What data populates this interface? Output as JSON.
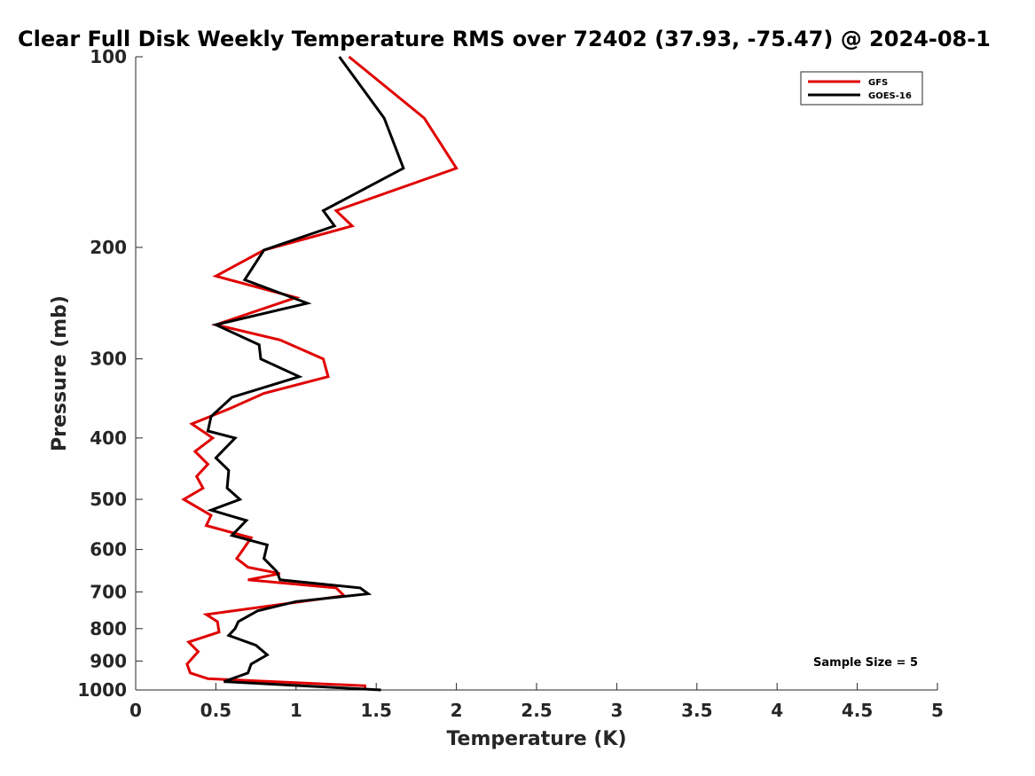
{
  "chart_data": {
    "type": "line",
    "title": "Clear Full Disk Weekly Temperature RMS over 72402 (37.93, -75.47) @ 2024-08-1",
    "xlabel": "Temperature (K)",
    "ylabel": "Pressure (mb)",
    "xlim": [
      0,
      5
    ],
    "ylim": [
      1000,
      100
    ],
    "yscale": "log",
    "xticks": [
      0,
      0.5,
      1,
      1.5,
      2,
      2.5,
      3,
      3.5,
      4,
      4.5,
      5
    ],
    "xtick_labels": [
      "0",
      "0.5",
      "1",
      "1.5",
      "2",
      "2.5",
      "3",
      "3.5",
      "4",
      "4.5",
      "5"
    ],
    "yticks": [
      100,
      200,
      300,
      400,
      500,
      600,
      700,
      800,
      900,
      1000
    ],
    "ytick_labels": [
      "100",
      "200",
      "300",
      "400",
      "500",
      "600",
      "700",
      "800",
      "900",
      "1000"
    ],
    "grid": false,
    "legend_position": "top-right",
    "annotation": "Sample Size = 5",
    "colors": {
      "GFS": "#e00000",
      "GOES-16": "#000000"
    },
    "series": [
      {
        "name": "GFS",
        "points": [
          [
            1.33,
            100
          ],
          [
            1.8,
            125
          ],
          [
            2.0,
            150
          ],
          [
            1.25,
            175
          ],
          [
            1.35,
            185
          ],
          [
            0.8,
            202
          ],
          [
            0.5,
            222
          ],
          [
            1.0,
            240
          ],
          [
            0.5,
            265
          ],
          [
            0.9,
            280
          ],
          [
            1.17,
            300
          ],
          [
            1.2,
            320
          ],
          [
            0.8,
            340
          ],
          [
            0.58,
            360
          ],
          [
            0.35,
            380
          ],
          [
            0.48,
            400
          ],
          [
            0.37,
            420
          ],
          [
            0.45,
            440
          ],
          [
            0.38,
            460
          ],
          [
            0.42,
            480
          ],
          [
            0.3,
            500
          ],
          [
            0.47,
            530
          ],
          [
            0.44,
            550
          ],
          [
            0.72,
            575
          ],
          [
            0.67,
            600
          ],
          [
            0.63,
            620
          ],
          [
            0.7,
            640
          ],
          [
            0.9,
            655
          ],
          [
            0.7,
            670
          ],
          [
            1.25,
            690
          ],
          [
            1.3,
            710
          ],
          [
            0.44,
            760
          ],
          [
            0.51,
            780
          ],
          [
            0.52,
            810
          ],
          [
            0.33,
            840
          ],
          [
            0.39,
            870
          ],
          [
            0.32,
            910
          ],
          [
            0.34,
            940
          ],
          [
            0.45,
            960
          ],
          [
            1.43,
            985
          ],
          [
            1.43,
            1000
          ]
        ]
      },
      {
        "name": "GOES-16",
        "points": [
          [
            1.27,
            100
          ],
          [
            1.55,
            125
          ],
          [
            1.67,
            150
          ],
          [
            1.17,
            175
          ],
          [
            1.24,
            185
          ],
          [
            0.8,
            202
          ],
          [
            0.68,
            225
          ],
          [
            1.07,
            245
          ],
          [
            0.5,
            265
          ],
          [
            0.77,
            285
          ],
          [
            0.78,
            300
          ],
          [
            1.02,
            320
          ],
          [
            0.6,
            345
          ],
          [
            0.47,
            370
          ],
          [
            0.45,
            390
          ],
          [
            0.62,
            400
          ],
          [
            0.5,
            430
          ],
          [
            0.58,
            450
          ],
          [
            0.57,
            480
          ],
          [
            0.65,
            500
          ],
          [
            0.47,
            520
          ],
          [
            0.69,
            540
          ],
          [
            0.6,
            570
          ],
          [
            0.82,
            590
          ],
          [
            0.8,
            620
          ],
          [
            0.88,
            650
          ],
          [
            0.9,
            670
          ],
          [
            1.4,
            690
          ],
          [
            1.45,
            705
          ],
          [
            1.0,
            725
          ],
          [
            0.76,
            750
          ],
          [
            0.64,
            780
          ],
          [
            0.62,
            800
          ],
          [
            0.58,
            820
          ],
          [
            0.75,
            850
          ],
          [
            0.82,
            880
          ],
          [
            0.72,
            910
          ],
          [
            0.7,
            940
          ],
          [
            0.55,
            970
          ],
          [
            1.53,
            1000
          ]
        ]
      }
    ]
  }
}
